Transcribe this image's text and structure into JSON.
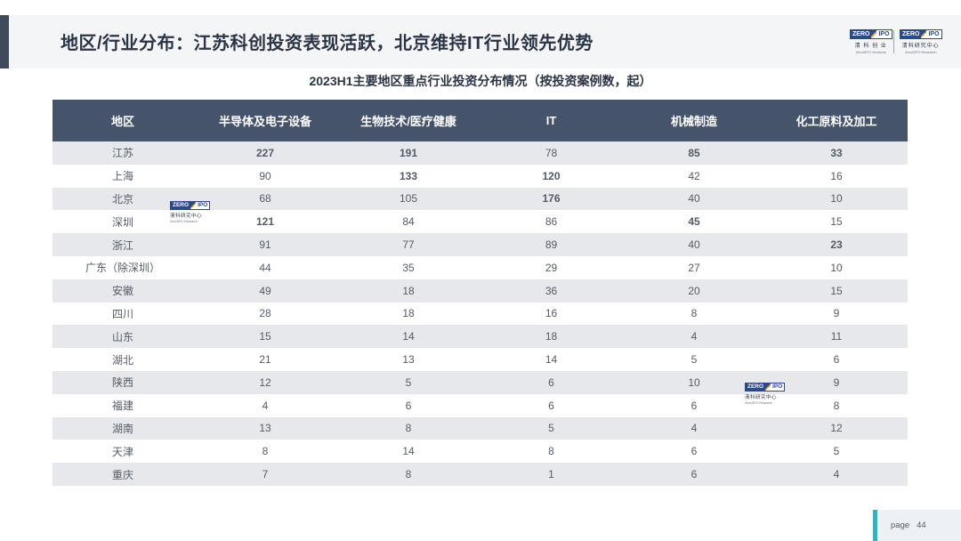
{
  "header": {
    "title": "地区/行业分布：江苏科创投资表现活跃，北京维持IT行业领先优势"
  },
  "logos": {
    "left": {
      "zero": "ZERO",
      "ipo": "IPO",
      "cn": "清 科 创 业",
      "en": "Zero2IPO Ventures"
    },
    "right": {
      "zero": "ZERO",
      "ipo": "IPO",
      "cn": "清科研究中心",
      "en": "Zero2IPO Research"
    }
  },
  "watermark": {
    "zero": "ZERO",
    "ipo": "IPO",
    "cn": "清科研究中心",
    "en": "Zero2IPO Research"
  },
  "table_title": "2023H1主要地区重点行业投资分布情况（按投资案例数，起）",
  "table": {
    "headers": [
      "地区",
      "半导体及电子设备",
      "生物技术/医疗健康",
      "IT",
      "机械制造",
      "化工原料及加工"
    ],
    "rows": [
      [
        "江苏",
        "227",
        "191",
        "78",
        "85",
        "33"
      ],
      [
        "上海",
        "90",
        "133",
        "120",
        "42",
        "16"
      ],
      [
        "北京",
        "68",
        "105",
        "176",
        "40",
        "10"
      ],
      [
        "深圳",
        "121",
        "84",
        "86",
        "45",
        "15"
      ],
      [
        "浙江",
        "91",
        "77",
        "89",
        "40",
        "23"
      ],
      [
        "广东（除深圳）",
        "44",
        "35",
        "29",
        "27",
        "10"
      ],
      [
        "安徽",
        "49",
        "18",
        "36",
        "20",
        "15"
      ],
      [
        "四川",
        "28",
        "18",
        "16",
        "8",
        "9"
      ],
      [
        "山东",
        "15",
        "14",
        "18",
        "4",
        "11"
      ],
      [
        "湖北",
        "21",
        "13",
        "14",
        "5",
        "6"
      ],
      [
        "陕西",
        "12",
        "5",
        "6",
        "10",
        "9"
      ],
      [
        "福建",
        "4",
        "6",
        "6",
        "6",
        "8"
      ],
      [
        "湖南",
        "13",
        "8",
        "5",
        "4",
        "12"
      ],
      [
        "天津",
        "8",
        "14",
        "8",
        "6",
        "5"
      ],
      [
        "重庆",
        "7",
        "8",
        "1",
        "6",
        "4"
      ]
    ],
    "highlight_colors": {
      "top1": "#b01c1c",
      "top2_3": "#2b3445",
      "top4_5": "#7a8fb3"
    }
  },
  "footer": {
    "page_label": "page",
    "page_number": "44"
  }
}
